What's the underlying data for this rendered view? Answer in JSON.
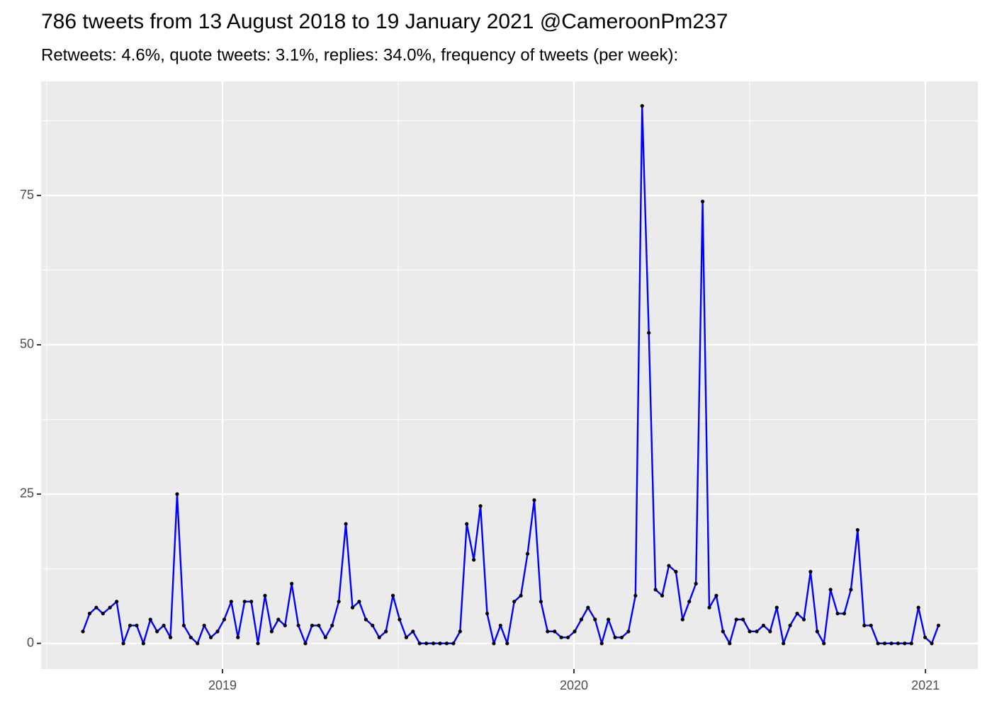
{
  "chart_data": {
    "type": "line",
    "title": "786 tweets from 13 August 2018 to 19 January 2021 @CameroonPm237",
    "subtitle": "Retweets: 4.6%, quote tweets: 3.1%, replies: 34.0%, frequency of tweets (per week):",
    "x": [
      2018.603,
      2018.622,
      2018.641,
      2018.66,
      2018.68,
      2018.699,
      2018.718,
      2018.737,
      2018.756,
      2018.775,
      2018.795,
      2018.814,
      2018.833,
      2018.852,
      2018.871,
      2018.89,
      2018.91,
      2018.929,
      2018.948,
      2018.967,
      2018.986,
      2019.005,
      2019.025,
      2019.044,
      2019.063,
      2019.082,
      2019.101,
      2019.121,
      2019.14,
      2019.159,
      2019.178,
      2019.197,
      2019.216,
      2019.236,
      2019.255,
      2019.274,
      2019.293,
      2019.312,
      2019.331,
      2019.351,
      2019.37,
      2019.389,
      2019.408,
      2019.427,
      2019.446,
      2019.465,
      2019.485,
      2019.504,
      2019.523,
      2019.542,
      2019.561,
      2019.58,
      2019.6,
      2019.619,
      2019.638,
      2019.657,
      2019.676,
      2019.695,
      2019.715,
      2019.734,
      2019.753,
      2019.772,
      2019.791,
      2019.81,
      2019.83,
      2019.849,
      2019.868,
      2019.887,
      2019.906,
      2019.925,
      2019.945,
      2019.964,
      2019.983,
      2020.002,
      2020.021,
      2020.04,
      2020.06,
      2020.079,
      2020.098,
      2020.117,
      2020.136,
      2020.155,
      2020.175,
      2020.194,
      2020.213,
      2020.232,
      2020.251,
      2020.27,
      2020.29,
      2020.309,
      2020.328,
      2020.347,
      2020.366,
      2020.385,
      2020.405,
      2020.424,
      2020.443,
      2020.462,
      2020.481,
      2020.5,
      2020.52,
      2020.539,
      2020.558,
      2020.577,
      2020.596,
      2020.615,
      2020.635,
      2020.654,
      2020.673,
      2020.692,
      2020.711,
      2020.73,
      2020.75,
      2020.769,
      2020.788,
      2020.807,
      2020.826,
      2020.845,
      2020.865,
      2020.884,
      2020.903,
      2020.922,
      2020.941,
      2020.96,
      2020.98,
      2020.999,
      2021.018,
      2021.037
    ],
    "values": [
      2,
      5,
      6,
      5,
      6,
      7,
      0,
      3,
      3,
      0,
      4,
      2,
      3,
      1,
      25,
      3,
      1,
      0,
      3,
      1,
      2,
      4,
      7,
      1,
      7,
      7,
      0,
      8,
      2,
      4,
      3,
      10,
      3,
      0,
      3,
      3,
      1,
      3,
      7,
      20,
      6,
      7,
      4,
      3,
      1,
      2,
      8,
      4,
      1,
      2,
      0,
      0,
      0,
      0,
      0,
      0,
      2,
      20,
      14,
      23,
      5,
      0,
      3,
      0,
      7,
      8,
      15,
      24,
      7,
      2,
      2,
      1,
      1,
      2,
      4,
      6,
      4,
      0,
      4,
      1,
      1,
      2,
      8,
      90,
      52,
      9,
      8,
      13,
      12,
      4,
      7,
      10,
      74,
      6,
      8,
      2,
      0,
      4,
      4,
      2,
      2,
      3,
      2,
      6,
      0,
      3,
      5,
      4,
      12,
      2,
      0,
      9,
      5,
      5,
      9,
      19,
      3,
      3,
      0,
      0,
      0,
      0,
      0,
      0,
      6,
      1,
      0,
      3
    ],
    "line_color": "#0000ff",
    "point_color": "#000000",
    "xlim": [
      2018.484,
      2021.149
    ],
    "xticks": [
      2019,
      2020,
      2021
    ],
    "ylim": [
      -4.3,
      94.1
    ],
    "yticks": [
      0,
      25,
      50,
      75
    ],
    "grid": true
  }
}
